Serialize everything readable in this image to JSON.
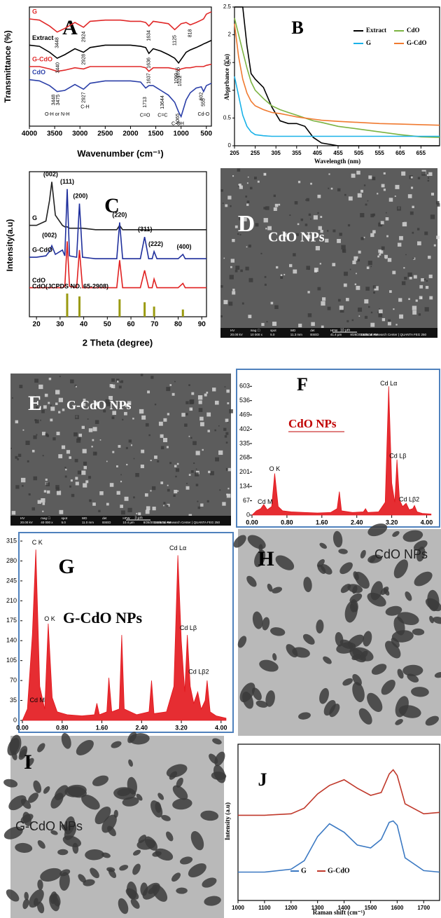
{
  "chart_data": [
    {
      "type": "line",
      "title": "A",
      "xlabel": "Wavenumber (cm⁻¹)",
      "ylabel": "Transmittance (%)",
      "legend": "inline",
      "xlim": [
        4000,
        400
      ],
      "ylim": [
        0,
        10
      ],
      "xticks": [
        4000,
        3500,
        3000,
        2500,
        2000,
        1500,
        1000,
        500
      ],
      "x": [
        4000,
        3800,
        3600,
        3450,
        3300,
        3100,
        2930,
        2800,
        2500,
        2200,
        2000,
        1800,
        1700,
        1636,
        1550,
        1400,
        1250,
        1125,
        1050,
        1000,
        900,
        818,
        700,
        600,
        555,
        500,
        400
      ],
      "series": [
        {
          "name": "G",
          "color": "#e02828",
          "values": [
            9.0,
            8.9,
            8.4,
            7.9,
            8.2,
            8.7,
            8.3,
            8.8,
            8.9,
            8.9,
            8.8,
            8.8,
            8.7,
            8.4,
            8.8,
            8.7,
            8.6,
            8.1,
            8.4,
            8.6,
            8.7,
            8.5,
            8.7,
            8.9,
            9.0,
            9.4,
            9.6
          ]
        },
        {
          "name": "Extract",
          "color": "#000000",
          "values": [
            6.8,
            6.7,
            6.2,
            5.7,
            6.0,
            6.5,
            6.2,
            6.6,
            6.8,
            6.8,
            6.8,
            6.7,
            6.6,
            6.1,
            6.5,
            6.3,
            6.0,
            5.7,
            5.3,
            5.6,
            6.2,
            6.4,
            6.6,
            6.8,
            6.9,
            7.0,
            7.2
          ]
        },
        {
          "name": "G-CdO",
          "color": "#e02828",
          "values": [
            5.0,
            5.0,
            4.8,
            4.6,
            4.7,
            4.9,
            4.8,
            5.0,
            5.0,
            5.0,
            5.0,
            5.0,
            4.9,
            4.6,
            4.9,
            4.9,
            4.9,
            4.8,
            4.7,
            4.8,
            4.9,
            4.9,
            5.0,
            5.0,
            5.0,
            5.1,
            5.2
          ]
        },
        {
          "name": "CdO",
          "color": "#2b3fa8",
          "values": [
            3.9,
            3.8,
            3.4,
            2.9,
            3.0,
            3.5,
            3.1,
            3.6,
            3.8,
            3.8,
            3.8,
            3.7,
            3.2,
            3.4,
            3.4,
            3.0,
            2.6,
            2.0,
            1.2,
            0.8,
            2.2,
            2.8,
            3.2,
            3.3,
            2.9,
            3.4,
            3.6
          ]
        }
      ],
      "annotations": [
        {
          "text": "3448",
          "x": 3448,
          "y": 7.0
        },
        {
          "text": "2924",
          "x": 2924,
          "y": 7.5
        },
        {
          "text": "1634",
          "x": 1634,
          "y": 7.6
        },
        {
          "text": "1125",
          "x": 1125,
          "y": 7.2
        },
        {
          "text": "818",
          "x": 818,
          "y": 7.8
        },
        {
          "text": "3440",
          "x": 3440,
          "y": 4.9
        },
        {
          "text": "2928",
          "x": 2928,
          "y": 5.6
        },
        {
          "text": "1636",
          "x": 1636,
          "y": 5.3
        },
        {
          "text": "1055",
          "x": 1055,
          "y": 4.5
        },
        {
          "text": "3448",
          "x": 3520,
          "y": 2.2
        },
        {
          "text": "3475",
          "x": 3430,
          "y": 2.2
        },
        {
          "text": "2927",
          "x": 2927,
          "y": 2.4
        },
        {
          "text": "1637",
          "x": 1637,
          "y": 4.0
        },
        {
          "text": "1713",
          "x": 1713,
          "y": 2.0
        },
        {
          "text": "13644",
          "x": 1364,
          "y": 2.0
        },
        {
          "text": "1090",
          "x": 1090,
          "y": 4.0
        },
        {
          "text": "1022",
          "x": 1022,
          "y": 3.8
        },
        {
          "text": "1065",
          "x": 1065,
          "y": 0.6
        },
        {
          "text": "602",
          "x": 602,
          "y": 2.5
        },
        {
          "text": "555",
          "x": 555,
          "y": 2.0
        },
        {
          "text": "O-H or N-H",
          "x": 3450,
          "y": 1.0
        },
        {
          "text": "C-H",
          "x": 2900,
          "y": 1.6
        },
        {
          "text": "C=O",
          "x": 1713,
          "y": 0.9
        },
        {
          "text": "C=C",
          "x": 1364,
          "y": 0.9
        },
        {
          "text": "C-OH",
          "x": 1065,
          "y": 0.2
        },
        {
          "text": "Cd-O",
          "x": 555,
          "y": 1.0
        }
      ]
    },
    {
      "type": "line",
      "title": "B",
      "xlabel": "Wavelength (nm)",
      "ylabel": "Absorbance (a.u)",
      "legend": "upper right",
      "xlim": [
        205,
        700
      ],
      "ylim": [
        0,
        2.5
      ],
      "xticks": [
        205,
        255,
        305,
        355,
        405,
        455,
        505,
        555,
        605,
        655
      ],
      "yticks": [
        0,
        0.5,
        1,
        1.5,
        2,
        2.5
      ],
      "x": [
        205,
        215,
        225,
        235,
        245,
        255,
        275,
        295,
        315,
        335,
        355,
        375,
        395,
        415,
        455,
        505,
        555,
        605,
        655,
        700
      ],
      "series": [
        {
          "name": "Extract",
          "color": "#000000",
          "values": [
            2.5,
            2.5,
            2.5,
            1.8,
            1.3,
            1.2,
            1.05,
            0.7,
            0.45,
            0.4,
            0.4,
            0.35,
            0.15,
            0.05,
            0,
            0,
            0,
            0,
            0,
            0
          ]
        },
        {
          "name": "CdO",
          "color": "#7cb342",
          "values": [
            2.3,
            2.0,
            1.7,
            1.4,
            1.15,
            1.0,
            0.85,
            0.72,
            0.65,
            0.6,
            0.55,
            0.5,
            0.45,
            0.42,
            0.35,
            0.3,
            0.25,
            0.2,
            0.16,
            0.15
          ]
        },
        {
          "name": "G",
          "color": "#1ab2e8",
          "values": [
            1.25,
            0.9,
            0.55,
            0.35,
            0.25,
            0.2,
            0.18,
            0.17,
            0.17,
            0.17,
            0.17,
            0.17,
            0.17,
            0.17,
            0.17,
            0.17,
            0.17,
            0.17,
            0.17,
            0.17
          ]
        },
        {
          "name": "G-CdO",
          "color": "#f07a30",
          "values": [
            2.2,
            1.6,
            1.2,
            0.95,
            0.8,
            0.72,
            0.65,
            0.6,
            0.58,
            0.55,
            0.52,
            0.5,
            0.48,
            0.46,
            0.44,
            0.42,
            0.4,
            0.39,
            0.38,
            0.37
          ]
        }
      ]
    },
    {
      "type": "line",
      "title": "C",
      "xlabel": "2 Theta (degree)",
      "ylabel": "Intensity(a.u)",
      "legend": "inline",
      "xlim": [
        17,
        92
      ],
      "ylim": [
        0,
        10
      ],
      "xticks": [
        20,
        30,
        40,
        50,
        60,
        70,
        80,
        90
      ],
      "x": [
        17,
        20,
        24,
        25.5,
        26.5,
        28,
        31,
        32,
        33,
        34,
        37,
        38.2,
        39.5,
        45,
        54,
        55.2,
        56.5,
        64,
        65.8,
        67.5,
        69,
        69.8,
        71,
        80,
        82,
        83,
        92
      ],
      "series": [
        {
          "name": "G",
          "color": "#222222",
          "label_color": "#000000",
          "values": [
            6.3,
            6.3,
            6.6,
            8.0,
            9.3,
            7.0,
            6.3,
            6.2,
            6.2,
            6.1,
            6.1,
            6.1,
            6.1,
            6.0,
            6.0,
            6.3,
            6.0,
            6.0,
            6.0,
            6.0,
            6.0,
            6.0,
            6.0,
            6.0,
            6.0,
            6.0,
            6.0
          ]
        },
        {
          "name": "G-CdO",
          "color": "#1f2f9c",
          "label_color": "#000000",
          "values": [
            4.1,
            4.1,
            4.2,
            4.5,
            4.9,
            4.3,
            4.6,
            4.2,
            8.8,
            4.2,
            4.1,
            7.8,
            4.1,
            4.0,
            4.0,
            6.5,
            4.0,
            4.0,
            5.5,
            4.0,
            4.0,
            4.5,
            4.0,
            4.0,
            4.3,
            4.0,
            4.0
          ]
        },
        {
          "name": "CdO",
          "color": "#e02020",
          "label_color": "#000000",
          "values": [
            2.0,
            2.0,
            2.0,
            2.0,
            2.0,
            2.0,
            2.0,
            2.1,
            5.2,
            2.1,
            2.0,
            4.6,
            2.0,
            2.0,
            2.0,
            3.9,
            2.0,
            2.0,
            3.2,
            2.0,
            2.0,
            2.6,
            2.0,
            2.0,
            2.3,
            2.0,
            2.0
          ]
        },
        {
          "name": "CdO(JCPDS NO. 65-2908)",
          "color": "#9a9a10",
          "label_color": "#000000",
          "style": "stick",
          "x": [
            33,
            38.2,
            55.2,
            65.8,
            69.8,
            82
          ],
          "values": [
            1.6,
            1.4,
            1.2,
            1.0,
            0.7,
            0.5
          ]
        }
      ],
      "annotations": [
        {
          "text": "(002)",
          "x": 26,
          "y": 9.8
        },
        {
          "text": "(111)",
          "x": 33,
          "y": 9.3
        },
        {
          "text": "(200)",
          "x": 38.6,
          "y": 8.3
        },
        {
          "text": "(220)",
          "x": 55.2,
          "y": 7.0
        },
        {
          "text": "(311)",
          "x": 66,
          "y": 6.0
        },
        {
          "text": "(222)",
          "x": 70.5,
          "y": 5.0
        },
        {
          "text": "(400)",
          "x": 82.5,
          "y": 4.8
        },
        {
          "text": "(002)",
          "x": 25.5,
          "y": 5.6
        }
      ]
    },
    {
      "type": "image",
      "title": "D",
      "label": "CdO NPs",
      "scale_bar": "10 μm",
      "info": [
        "HV",
        "mag ☐",
        "spot",
        "WD",
        "det",
        "HFW",
        "20.00 kV",
        "10 000 x",
        "5.0",
        "11.3 mm",
        "BSED",
        "41.4 μm",
        "8/28/2018",
        "11:25:16 AM",
        "ational Research Center ( QUANTA FEG 250"
      ]
    },
    {
      "type": "image",
      "title": "E",
      "label": "G-CdO NPs",
      "scale_bar": "3 μm",
      "info": [
        "HV",
        "mag ☐",
        "spot",
        "WD",
        "det",
        "HFW",
        "20.00 kV",
        "40 000 x",
        "5.0",
        "11.0 mm",
        "BSED",
        "10.4 μm",
        "8/28/2018",
        "11:28:31 AM",
        "ational Research Center ( QUANTA FEG 250"
      ]
    },
    {
      "type": "area",
      "title": "F",
      "label": "CdO NPs",
      "xlim": [
        0,
        4.2
      ],
      "ylim": [
        0,
        640
      ],
      "xticks": [
        {
          "value": 0,
          "label": "0.00"
        },
        {
          "value": 0.8,
          "label": "0.80"
        },
        {
          "value": 1.6,
          "label": "1.60"
        },
        {
          "value": 2.4,
          "label": "2.40"
        },
        {
          "value": 3.2,
          "label": "3.20"
        },
        {
          "value": 4.0,
          "label": "4.00"
        }
      ],
      "yticks": [
        0,
        67,
        134,
        201,
        268,
        335,
        402,
        469,
        536,
        603
      ],
      "x": [
        0,
        0.1,
        0.2,
        0.27,
        0.35,
        0.45,
        0.52,
        0.6,
        0.7,
        0.9,
        1.2,
        1.5,
        1.8,
        1.95,
        2.0,
        2.05,
        2.3,
        2.55,
        2.6,
        2.65,
        2.9,
        3.05,
        3.13,
        3.2,
        3.27,
        3.32,
        3.38,
        3.45,
        3.53,
        3.6,
        3.68,
        3.72,
        3.78,
        3.9,
        4.1
      ],
      "series": [
        {
          "color": "#e3161c",
          "values": [
            0,
            20,
            30,
            50,
            25,
            40,
            195,
            40,
            20,
            15,
            12,
            10,
            12,
            30,
            110,
            20,
            12,
            15,
            30,
            12,
            15,
            60,
            603,
            150,
            60,
            260,
            70,
            40,
            55,
            25,
            30,
            45,
            15,
            8,
            5
          ]
        }
      ],
      "annotations": [
        {
          "text": "Cd Lα",
          "x": 3.13,
          "y": 615
        },
        {
          "text": "Cd Lβ",
          "x": 3.34,
          "y": 275
        },
        {
          "text": "O K",
          "x": 0.52,
          "y": 215
        },
        {
          "text": "Cd M",
          "x": 0.3,
          "y": 60
        },
        {
          "text": "Cd Lβ2",
          "x": 3.6,
          "y": 72
        }
      ]
    },
    {
      "type": "area",
      "title": "G",
      "label": "G-CdO NPs",
      "xlim": [
        0,
        4.2
      ],
      "ylim": [
        0,
        320
      ],
      "xticks": [
        {
          "value": 0,
          "label": "0.00"
        },
        {
          "value": 0.8,
          "label": "0.80"
        },
        {
          "value": 1.6,
          "label": "1.60"
        },
        {
          "value": 2.4,
          "label": "2.40"
        },
        {
          "value": 3.2,
          "label": "3.20"
        },
        {
          "value": 4.0,
          "label": "4.00"
        }
      ],
      "yticks": [
        0,
        35,
        70,
        105,
        140,
        175,
        210,
        245,
        280,
        315
      ],
      "x": [
        0,
        0.1,
        0.2,
        0.27,
        0.35,
        0.45,
        0.52,
        0.6,
        0.7,
        0.9,
        1.2,
        1.45,
        1.5,
        1.55,
        1.7,
        1.74,
        1.8,
        1.95,
        2.0,
        2.05,
        2.3,
        2.55,
        2.6,
        2.65,
        2.9,
        3.05,
        3.13,
        3.2,
        3.27,
        3.32,
        3.38,
        3.45,
        3.53,
        3.6,
        3.68,
        3.72,
        3.78,
        3.9,
        4.1
      ],
      "series": [
        {
          "color": "#e3161c",
          "values": [
            0,
            20,
            150,
            300,
            60,
            20,
            170,
            40,
            15,
            10,
            8,
            10,
            30,
            10,
            15,
            75,
            15,
            20,
            150,
            20,
            10,
            15,
            70,
            12,
            15,
            60,
            290,
            140,
            50,
            150,
            60,
            30,
            50,
            20,
            35,
            70,
            15,
            8,
            4
          ]
        }
      ],
      "annotations": [
        {
          "text": "C K",
          "x": 0.3,
          "y": 312
        },
        {
          "text": "O K",
          "x": 0.55,
          "y": 178
        },
        {
          "text": "Cd Lα",
          "x": 3.13,
          "y": 302
        },
        {
          "text": "Cd Lβ",
          "x": 3.34,
          "y": 162
        },
        {
          "text": "Cd M",
          "x": 0.3,
          "y": 35
        },
        {
          "text": "Cd Lβ2",
          "x": 3.55,
          "y": 85
        }
      ]
    },
    {
      "type": "image",
      "title": "H",
      "label": "CdO NPs"
    },
    {
      "type": "image",
      "title": "I",
      "label": "G-CdO NPs"
    },
    {
      "type": "line",
      "title": "J",
      "xlabel": "Raman shift (cm⁻¹)",
      "ylabel": "Intensity (a.u)",
      "legend": "lower center",
      "xlim": [
        1000,
        1760
      ],
      "ylim": [
        0,
        11
      ],
      "xticks": [
        1000,
        1100,
        1200,
        1300,
        1400,
        1500,
        1600,
        1700
      ],
      "x": [
        1000,
        1100,
        1200,
        1250,
        1300,
        1345,
        1400,
        1450,
        1500,
        1540,
        1570,
        1585,
        1600,
        1630,
        1700,
        1760
      ],
      "series": [
        {
          "name": "G",
          "color": "#3a78c2",
          "values": [
            2.0,
            2.0,
            2.2,
            2.8,
            4.5,
            5.4,
            4.8,
            3.9,
            3.7,
            4.3,
            5.5,
            5.6,
            5.3,
            3.0,
            2.1,
            2.0
          ]
        },
        {
          "name": "G-CdO",
          "color": "#c0392b",
          "values": [
            6.0,
            6.0,
            6.1,
            6.5,
            7.5,
            8.1,
            8.5,
            7.9,
            7.4,
            7.6,
            8.9,
            9.2,
            8.8,
            6.8,
            6.1,
            6.2
          ]
        }
      ]
    }
  ]
}
